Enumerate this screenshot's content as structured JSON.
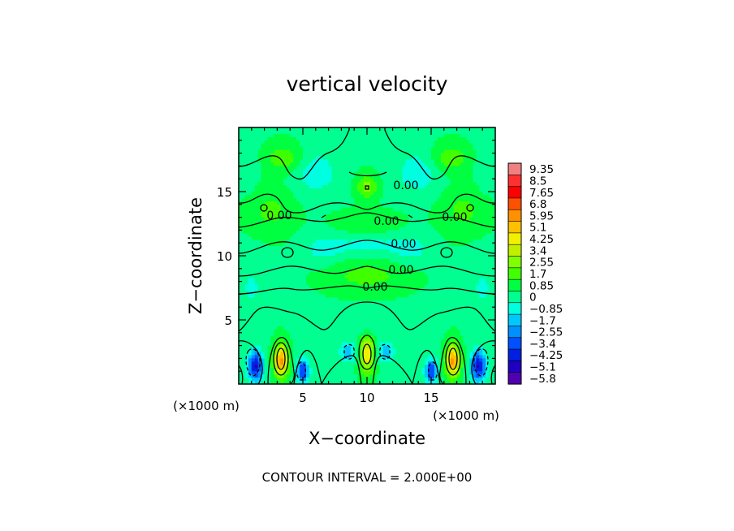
{
  "chart_data": {
    "type": "heatmap",
    "title": "vertical velocity",
    "xlabel": "X−coordinate",
    "ylabel": "Z−coordinate",
    "x_unit_label": "(×1000 m)",
    "z_unit_label": "(×1000 m)",
    "xlim": [
      0,
      20
    ],
    "ylim": [
      0,
      20
    ],
    "x_ticks": [
      5,
      10,
      15
    ],
    "y_ticks": [
      5,
      10,
      15
    ],
    "contour_interval_text": "CONTOUR INTERVAL = 2.000E+00",
    "contour_labels": [
      "0.00",
      "0.00",
      "0.00",
      "0.00",
      "0.00",
      "0.00",
      "0.00",
      "0.00"
    ],
    "colorbar": {
      "labels": [
        "9.35",
        "8.5",
        "7.65",
        "6.8",
        "5.95",
        "5.1",
        "4.25",
        "3.4",
        "2.55",
        "1.7",
        "0.85",
        "0",
        "−0.85",
        "−1.7",
        "−2.55",
        "−3.4",
        "−4.25",
        "−5.1",
        "−5.8"
      ],
      "colors": [
        "#f08080",
        "#ff3030",
        "#ff0000",
        "#ff5000",
        "#ff9000",
        "#ffc000",
        "#f0f000",
        "#c0f000",
        "#80ff00",
        "#40ff00",
        "#00ff40",
        "#00ff90",
        "#00ffe0",
        "#00c8ff",
        "#0090ff",
        "#0050ff",
        "#0020e0",
        "#2000c0",
        "#5000b0"
      ],
      "vmin": -5.8,
      "vmax": 9.35
    },
    "features": [
      {
        "x": 3.3,
        "z": 1.8,
        "value": 5.1,
        "sx": 0.55,
        "sz": 1.3
      },
      {
        "x": 16.7,
        "z": 1.8,
        "value": 5.1,
        "sx": 0.55,
        "sz": 1.3
      },
      {
        "x": 10.0,
        "z": 2.3,
        "value": 4.0,
        "sx": 0.55,
        "sz": 1.4
      },
      {
        "x": 1.3,
        "z": 1.4,
        "value": -4.8,
        "sx": 0.6,
        "sz": 1.2
      },
      {
        "x": 18.7,
        "z": 1.4,
        "value": -4.8,
        "sx": 0.6,
        "sz": 1.2
      },
      {
        "x": 5.0,
        "z": 1.0,
        "value": -4.0,
        "sx": 0.5,
        "sz": 0.9
      },
      {
        "x": 15.0,
        "z": 1.0,
        "value": -4.0,
        "sx": 0.5,
        "sz": 0.9
      },
      {
        "x": 8.5,
        "z": 2.5,
        "value": -2.2,
        "sx": 0.6,
        "sz": 0.8
      },
      {
        "x": 11.5,
        "z": 2.5,
        "value": -2.2,
        "sx": 0.6,
        "sz": 0.8
      },
      {
        "x": 10.0,
        "z": 15.4,
        "value": 2.0,
        "sx": 0.8,
        "sz": 0.9
      },
      {
        "x": 3.5,
        "z": 17.6,
        "value": 1.5,
        "sx": 1.5,
        "sz": 1.1
      },
      {
        "x": 16.5,
        "z": 17.6,
        "value": 1.5,
        "sx": 1.5,
        "sz": 1.1
      },
      {
        "x": 10.0,
        "z": 8.5,
        "value": 1.2,
        "sx": 3.0,
        "sz": 1.3
      },
      {
        "x": 2.5,
        "z": 13.5,
        "value": 1.1,
        "sx": 1.8,
        "sz": 1.8
      },
      {
        "x": 17.5,
        "z": 13.5,
        "value": 1.1,
        "sx": 1.8,
        "sz": 1.8
      },
      {
        "x": 10.0,
        "z": 12.5,
        "value": 0.8,
        "sx": 2.5,
        "sz": 1.0
      },
      {
        "x": 6.0,
        "z": 16.5,
        "value": -1.2,
        "sx": 1.8,
        "sz": 1.8
      },
      {
        "x": 14.0,
        "z": 16.5,
        "value": -1.2,
        "sx": 1.8,
        "sz": 1.8
      },
      {
        "x": 10.0,
        "z": 10.8,
        "value": -1.0,
        "sx": 3.0,
        "sz": 1.0
      },
      {
        "x": 1.0,
        "z": 7.5,
        "value": -0.8,
        "sx": 1.2,
        "sz": 2.5
      },
      {
        "x": 19.0,
        "z": 7.5,
        "value": -0.8,
        "sx": 1.2,
        "sz": 2.5
      },
      {
        "x": 6.5,
        "z": 10.5,
        "value": -0.9,
        "sx": 1.5,
        "sz": 1.2
      },
      {
        "x": 13.5,
        "z": 10.5,
        "value": -0.9,
        "sx": 1.5,
        "sz": 1.2
      },
      {
        "x": 0.5,
        "z": 17.0,
        "value": -0.7,
        "sx": 1.0,
        "sz": 2.0
      },
      {
        "x": 19.5,
        "z": 17.0,
        "value": -0.7,
        "sx": 1.0,
        "sz": 2.0
      },
      {
        "x": 10.0,
        "z": 4.7,
        "value": -0.7,
        "sx": 3.0,
        "sz": 0.8
      }
    ],
    "base_value": 0.5
  }
}
